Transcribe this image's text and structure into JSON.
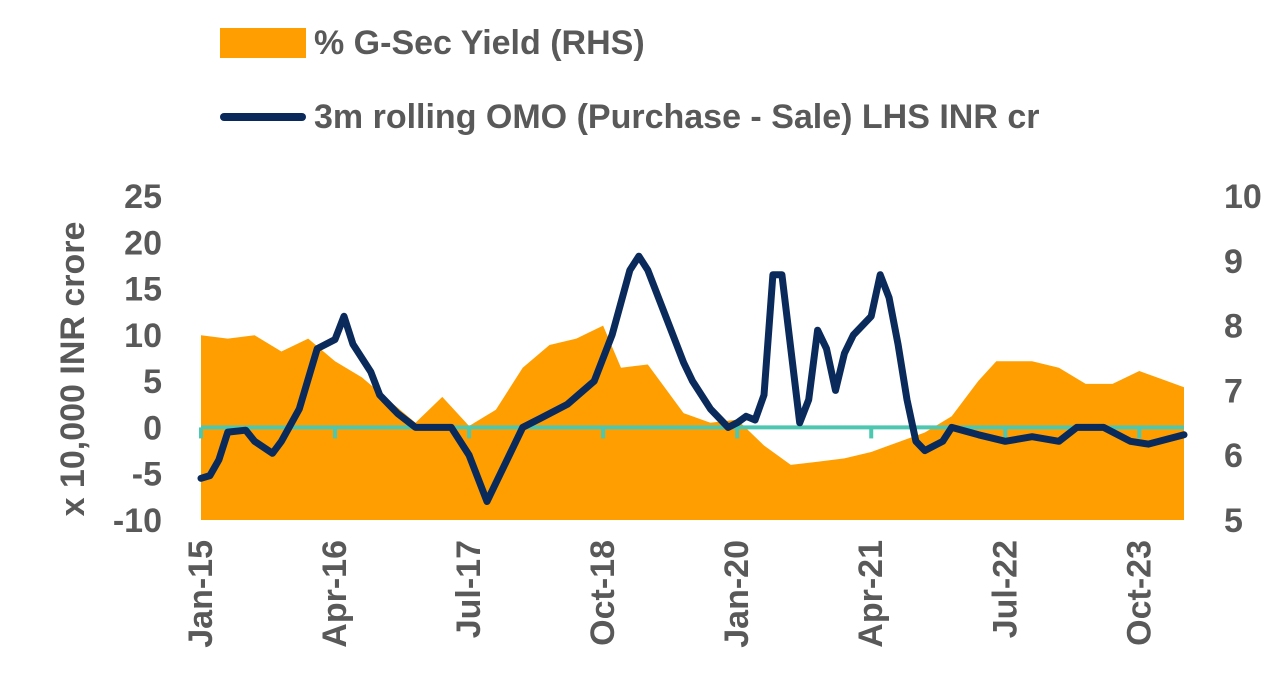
{
  "chart_data": {
    "type": "area+line",
    "legend": [
      {
        "key": "yield",
        "label": "% G-Sec Yield (RHS)",
        "color": "#FF9E00",
        "kind": "area"
      },
      {
        "key": "omo",
        "label": "3m rolling OMO (Purchase - Sale) LHS INR cr",
        "color": "#0B2A5C",
        "kind": "line"
      }
    ],
    "ylabel": "x 10,000 INR crore",
    "y_left": {
      "min": -10,
      "max": 25,
      "ticks": [
        -10,
        -5,
        0,
        5,
        10,
        15,
        20,
        25
      ]
    },
    "y_right": {
      "min": 5,
      "max": 10,
      "ticks": [
        5,
        6,
        7,
        8,
        9,
        10
      ]
    },
    "x_labels": [
      "Jan-15",
      "Apr-16",
      "Jul-17",
      "Oct-18",
      "Jan-20",
      "Apr-21",
      "Jul-22",
      "Oct-23"
    ],
    "zero_line_color": "#4DC7B0",
    "x_start": "2015-01",
    "yield_series": {
      "name": "% G-Sec Yield (RHS)",
      "points": [
        [
          "2015-01",
          7.85
        ],
        [
          "2015-04",
          7.8
        ],
        [
          "2015-07",
          7.85
        ],
        [
          "2015-10",
          7.6
        ],
        [
          "2016-01",
          7.8
        ],
        [
          "2016-04",
          7.45
        ],
        [
          "2016-07",
          7.2
        ],
        [
          "2016-10",
          6.85
        ],
        [
          "2017-01",
          6.5
        ],
        [
          "2017-04",
          6.9
        ],
        [
          "2017-07",
          6.45
        ],
        [
          "2017-10",
          6.7
        ],
        [
          "2018-01",
          7.35
        ],
        [
          "2018-04",
          7.7
        ],
        [
          "2018-07",
          7.8
        ],
        [
          "2018-10",
          8.0
        ],
        [
          "2018-12",
          7.35
        ],
        [
          "2019-03",
          7.4
        ],
        [
          "2019-07",
          6.65
        ],
        [
          "2019-10",
          6.5
        ],
        [
          "2020-01",
          6.55
        ],
        [
          "2020-04",
          6.15
        ],
        [
          "2020-07",
          5.85
        ],
        [
          "2020-10",
          5.9
        ],
        [
          "2021-01",
          5.95
        ],
        [
          "2021-04",
          6.05
        ],
        [
          "2021-07",
          6.2
        ],
        [
          "2021-10",
          6.35
        ],
        [
          "2022-01",
          6.6
        ],
        [
          "2022-04",
          7.15
        ],
        [
          "2022-06",
          7.45
        ],
        [
          "2022-10",
          7.45
        ],
        [
          "2023-01",
          7.35
        ],
        [
          "2023-04",
          7.1
        ],
        [
          "2023-07",
          7.1
        ],
        [
          "2023-10",
          7.3
        ],
        [
          "2024-03",
          7.05
        ]
      ]
    },
    "omo_series": {
      "name": "3m rolling OMO (Purchase - Sale) LHS INR cr",
      "points": [
        [
          "2015-01",
          -5.5
        ],
        [
          "2015-02",
          -5.2
        ],
        [
          "2015-03",
          -3.5
        ],
        [
          "2015-04",
          -0.5
        ],
        [
          "2015-06",
          -0.3
        ],
        [
          "2015-07",
          -1.5
        ],
        [
          "2015-09",
          -2.8
        ],
        [
          "2015-10",
          -1.5
        ],
        [
          "2015-12",
          2.0
        ],
        [
          "2016-02",
          8.5
        ],
        [
          "2016-04",
          9.5
        ],
        [
          "2016-05",
          12.0
        ],
        [
          "2016-06",
          9.0
        ],
        [
          "2016-08",
          6.0
        ],
        [
          "2016-09",
          3.5
        ],
        [
          "2016-10",
          2.5
        ],
        [
          "2016-11",
          1.5
        ],
        [
          "2017-01",
          0.0
        ],
        [
          "2017-05",
          0.0
        ],
        [
          "2017-07",
          -3.0
        ],
        [
          "2017-09",
          -8.0
        ],
        [
          "2017-10",
          -6.0
        ],
        [
          "2017-12",
          -2.0
        ],
        [
          "2018-01",
          0.0
        ],
        [
          "2018-03",
          1.0
        ],
        [
          "2018-06",
          2.5
        ],
        [
          "2018-09",
          5.0
        ],
        [
          "2018-11",
          10.0
        ],
        [
          "2019-01",
          17.0
        ],
        [
          "2019-02",
          18.5
        ],
        [
          "2019-03",
          17.0
        ],
        [
          "2019-05",
          12.0
        ],
        [
          "2019-07",
          7.0
        ],
        [
          "2019-08",
          5.0
        ],
        [
          "2019-10",
          2.0
        ],
        [
          "2019-12",
          0.0
        ],
        [
          "2020-01",
          0.5
        ],
        [
          "2020-02",
          1.2
        ],
        [
          "2020-03",
          0.8
        ],
        [
          "2020-04",
          3.5
        ],
        [
          "2020-05",
          16.5
        ],
        [
          "2020-06",
          16.5
        ],
        [
          "2020-08",
          0.5
        ],
        [
          "2020-09",
          3.0
        ],
        [
          "2020-10",
          10.5
        ],
        [
          "2020-11",
          8.5
        ],
        [
          "2020-12",
          4.0
        ],
        [
          "2021-01",
          8.0
        ],
        [
          "2021-02",
          10.0
        ],
        [
          "2021-04",
          12.0
        ],
        [
          "2021-05",
          16.5
        ],
        [
          "2021-06",
          14.0
        ],
        [
          "2021-07",
          9.0
        ],
        [
          "2021-08",
          3.0
        ],
        [
          "2021-09",
          -1.5
        ],
        [
          "2021-10",
          -2.5
        ],
        [
          "2021-12",
          -1.5
        ],
        [
          "2022-01",
          0.0
        ],
        [
          "2022-04",
          -0.8
        ],
        [
          "2022-07",
          -1.5
        ],
        [
          "2022-10",
          -1.0
        ],
        [
          "2023-01",
          -1.5
        ],
        [
          "2023-03",
          0.0
        ],
        [
          "2023-06",
          0.0
        ],
        [
          "2023-09",
          -1.5
        ],
        [
          "2023-11",
          -1.8
        ],
        [
          "2024-03",
          -0.8
        ]
      ]
    }
  }
}
